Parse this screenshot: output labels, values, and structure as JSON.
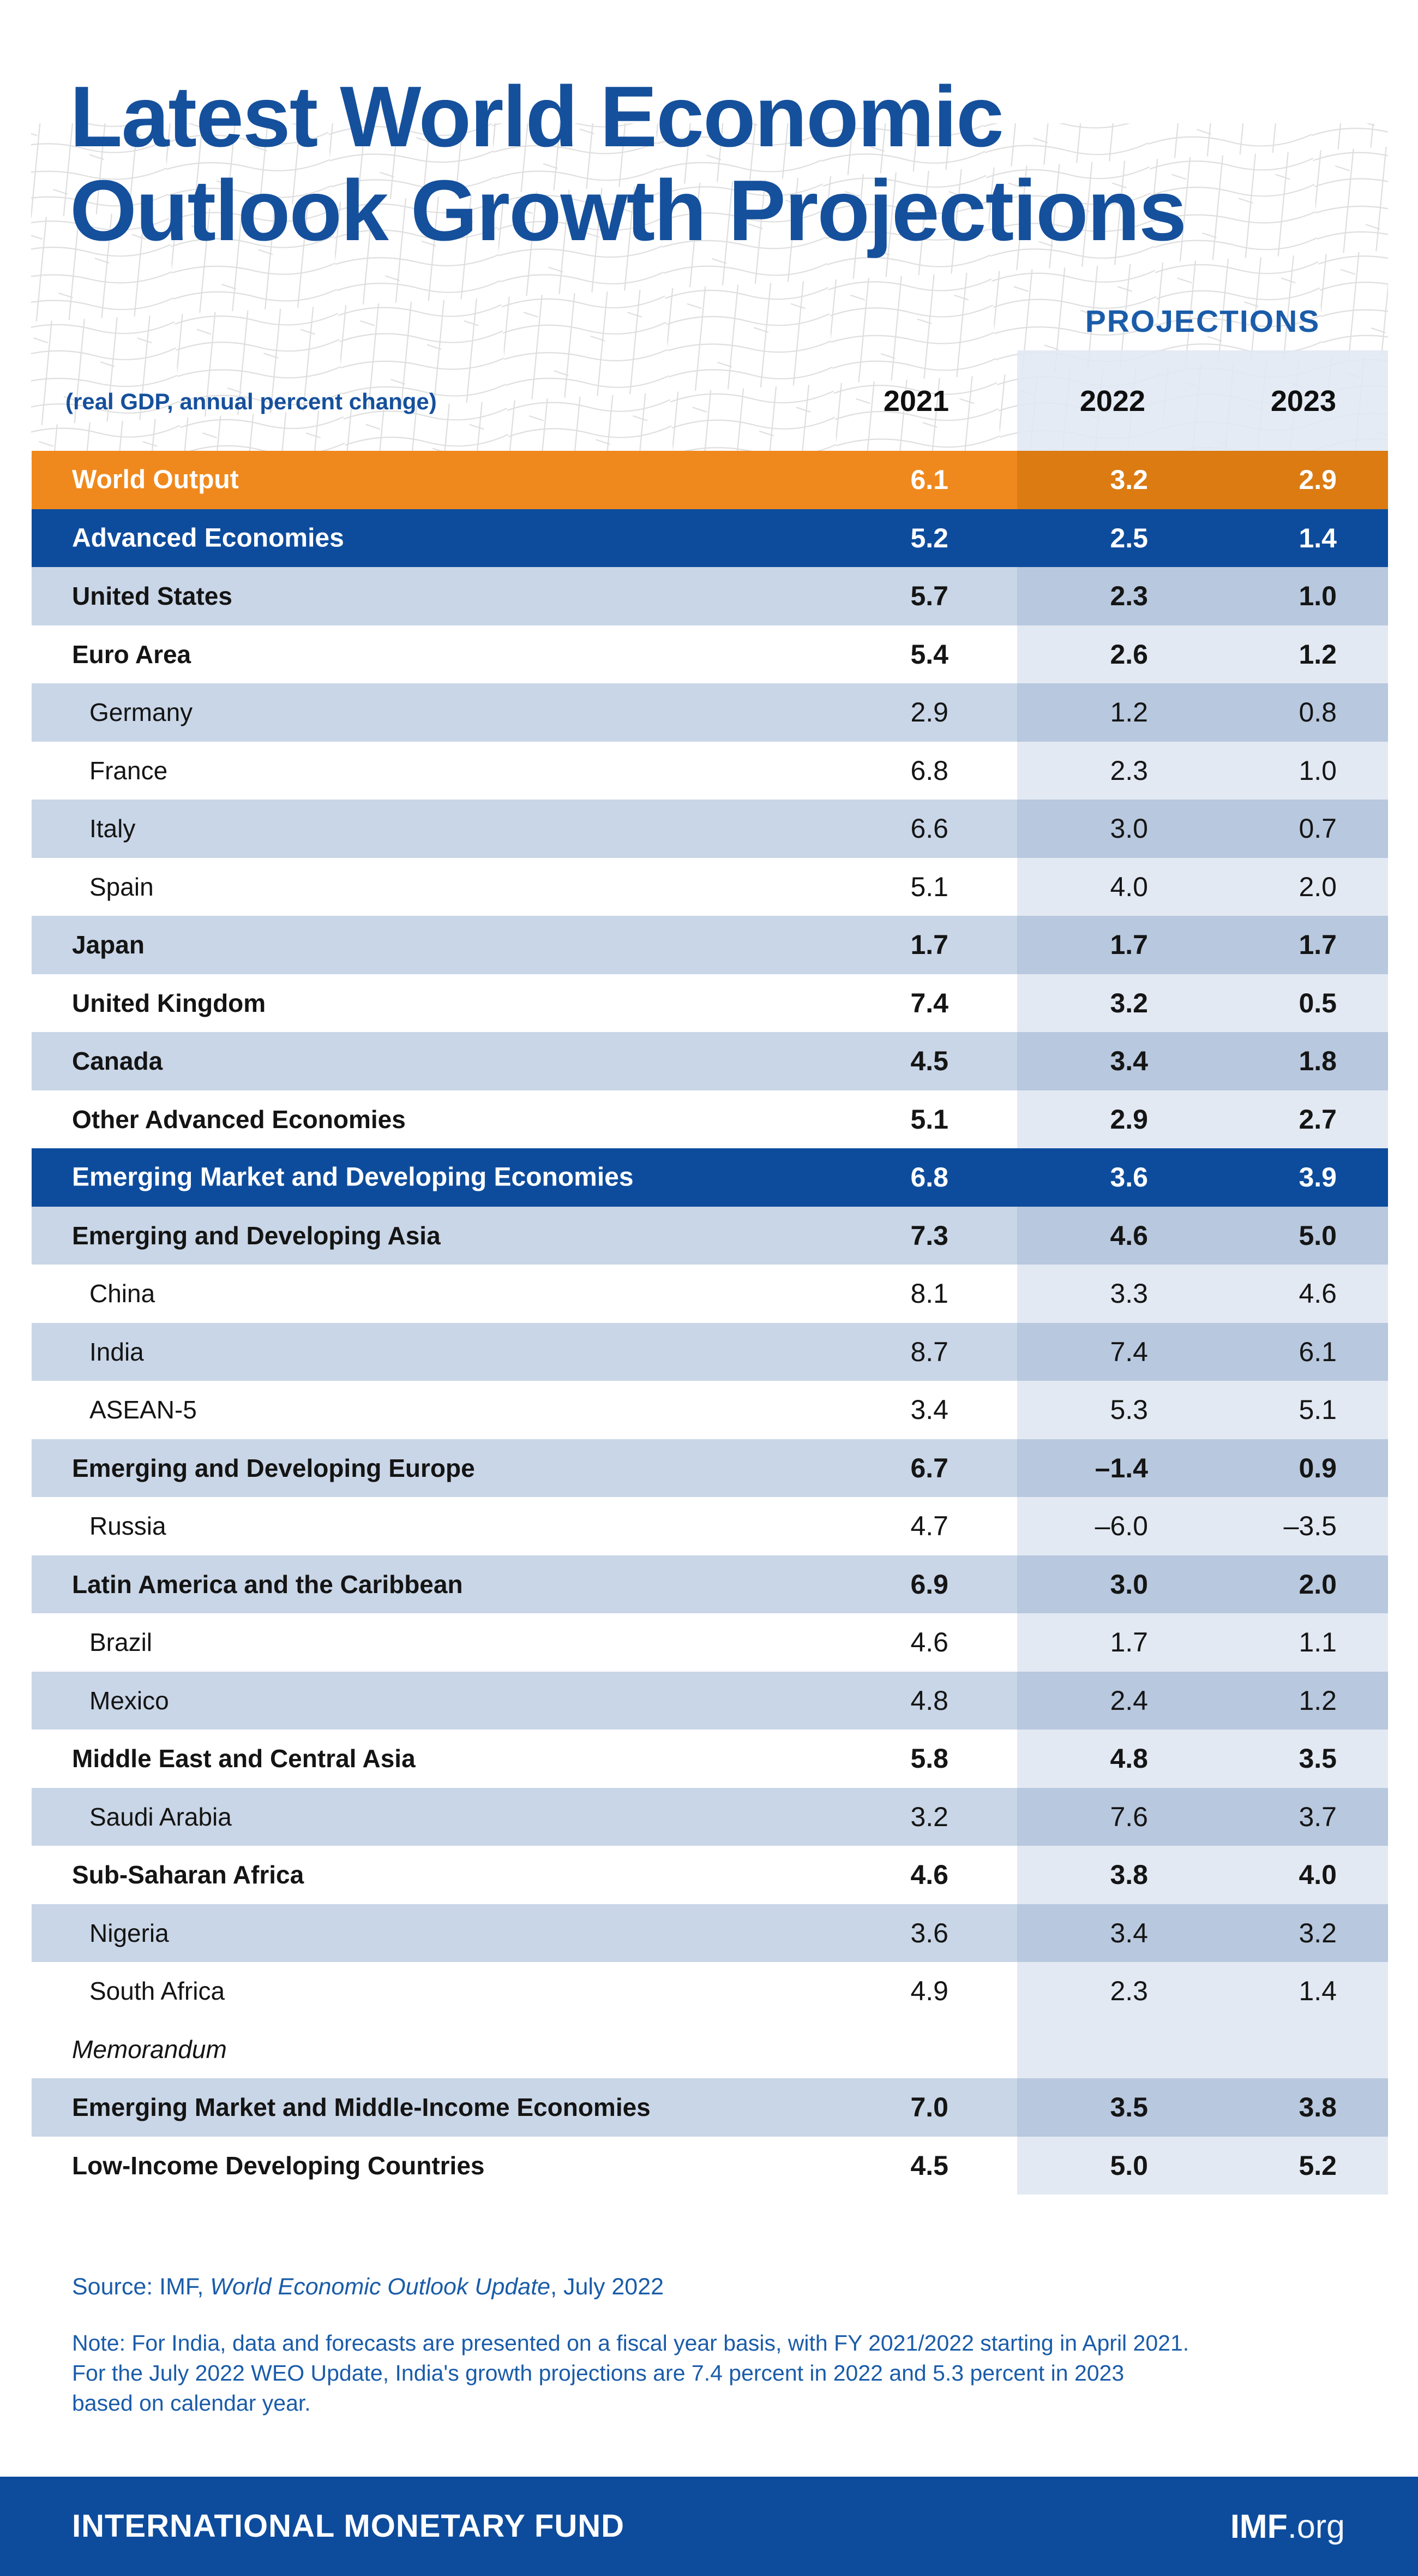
{
  "header": {
    "title_line1": "Latest World Economic",
    "title_line2": "Outlook Growth Projections",
    "projections_label": "PROJECTIONS",
    "unit_label": "(real GDP, annual percent change)",
    "years": [
      "2021",
      "2022",
      "2023"
    ]
  },
  "table": {
    "rows": [
      {
        "label": "World Output",
        "shade": "orange",
        "indent": false,
        "values": [
          "6.1",
          "3.2",
          "2.9"
        ]
      },
      {
        "label": "Advanced Economies",
        "shade": "blue",
        "indent": false,
        "values": [
          "5.2",
          "2.5",
          "1.4"
        ]
      },
      {
        "label": "United States",
        "shade": "light",
        "indent": false,
        "values": [
          "5.7",
          "2.3",
          "1.0"
        ]
      },
      {
        "label": "Euro Area",
        "shade": "white",
        "indent": false,
        "values": [
          "5.4",
          "2.6",
          "1.2"
        ]
      },
      {
        "label": "Germany",
        "shade": "light",
        "indent": true,
        "values": [
          "2.9",
          "1.2",
          "0.8"
        ]
      },
      {
        "label": "France",
        "shade": "white",
        "indent": true,
        "values": [
          "6.8",
          "2.3",
          "1.0"
        ]
      },
      {
        "label": "Italy",
        "shade": "light",
        "indent": true,
        "values": [
          "6.6",
          "3.0",
          "0.7"
        ]
      },
      {
        "label": "Spain",
        "shade": "white",
        "indent": true,
        "values": [
          "5.1",
          "4.0",
          "2.0"
        ]
      },
      {
        "label": "Japan",
        "shade": "light",
        "indent": false,
        "values": [
          "1.7",
          "1.7",
          "1.7"
        ]
      },
      {
        "label": "United Kingdom",
        "shade": "white",
        "indent": false,
        "values": [
          "7.4",
          "3.2",
          "0.5"
        ]
      },
      {
        "label": "Canada",
        "shade": "light",
        "indent": false,
        "values": [
          "4.5",
          "3.4",
          "1.8"
        ]
      },
      {
        "label": "Other Advanced Economies",
        "shade": "white",
        "indent": false,
        "values": [
          "5.1",
          "2.9",
          "2.7"
        ]
      },
      {
        "label": "Emerging Market and Developing Economies",
        "shade": "blue",
        "indent": false,
        "values": [
          "6.8",
          "3.6",
          "3.9"
        ]
      },
      {
        "label": "Emerging and Developing Asia",
        "shade": "light",
        "indent": false,
        "values": [
          "7.3",
          "4.6",
          "5.0"
        ]
      },
      {
        "label": "China",
        "shade": "white",
        "indent": true,
        "values": [
          "8.1",
          "3.3",
          "4.6"
        ]
      },
      {
        "label": "India",
        "shade": "light",
        "indent": true,
        "values": [
          "8.7",
          "7.4",
          "6.1"
        ]
      },
      {
        "label": "ASEAN-5",
        "shade": "white",
        "indent": true,
        "values": [
          "3.4",
          "5.3",
          "5.1"
        ]
      },
      {
        "label": "Emerging and Developing Europe",
        "shade": "light",
        "indent": false,
        "values": [
          "6.7",
          "–1.4",
          "0.9"
        ]
      },
      {
        "label": "Russia",
        "shade": "white",
        "indent": true,
        "values": [
          "4.7",
          "–6.0",
          "–3.5"
        ]
      },
      {
        "label": "Latin America and the Caribbean",
        "shade": "light",
        "indent": false,
        "values": [
          "6.9",
          "3.0",
          "2.0"
        ]
      },
      {
        "label": "Brazil",
        "shade": "white",
        "indent": true,
        "values": [
          "4.6",
          "1.7",
          "1.1"
        ]
      },
      {
        "label": "Mexico",
        "shade": "light",
        "indent": true,
        "values": [
          "4.8",
          "2.4",
          "1.2"
        ]
      },
      {
        "label": "Middle East and Central Asia",
        "shade": "white",
        "indent": false,
        "values": [
          "5.8",
          "4.8",
          "3.5"
        ]
      },
      {
        "label": "Saudi Arabia",
        "shade": "light",
        "indent": true,
        "values": [
          "3.2",
          "7.6",
          "3.7"
        ]
      },
      {
        "label": "Sub-Saharan Africa",
        "shade": "white",
        "indent": false,
        "values": [
          "4.6",
          "3.8",
          "4.0"
        ]
      },
      {
        "label": "Nigeria",
        "shade": "light",
        "indent": true,
        "values": [
          "3.6",
          "3.4",
          "3.2"
        ]
      },
      {
        "label": "South Africa",
        "shade": "white",
        "indent": true,
        "values": [
          "4.9",
          "2.3",
          "1.4"
        ]
      },
      {
        "label": "Memorandum",
        "shade": "white",
        "indent": false,
        "memo": true,
        "values": null
      },
      {
        "label": "Emerging Market and Middle-Income Economies",
        "shade": "light",
        "indent": false,
        "values": [
          "7.0",
          "3.5",
          "3.8"
        ]
      },
      {
        "label": "Low-Income Developing Countries",
        "shade": "white",
        "indent": false,
        "values": [
          "4.5",
          "5.0",
          "5.2"
        ]
      }
    ]
  },
  "source": {
    "prefix": "Source: IMF, ",
    "italic": "World Economic Outlook Update",
    "suffix": ", July 2022"
  },
  "note": "Note: For India, data and forecasts are presented on a fiscal year basis, with FY 2021/2022 starting in April 2021.\nFor the July 2022 WEO Update, India's growth projections are 7.4 percent in 2022 and 5.3 percent in 2023\nbased on calendar year.",
  "footer": {
    "org": "INTERNATIONAL MONETARY FUND",
    "site_bold": "IMF",
    "site_rest": ".org"
  },
  "colors": {
    "imf_blue": "#0D4C9D",
    "title_blue": "#15509C",
    "accent_blue": "#1A5CA9",
    "orange": "#F0891D",
    "orange_projection": "#DB7B12",
    "row_light_blue": "#C9D6E7",
    "row_light_blue_projection": "#B8C8DE",
    "projection_overlay": "#E3E9F3"
  },
  "chart_data": {
    "type": "table",
    "title": "Latest World Economic Outlook Growth Projections",
    "unit": "real GDP, annual percent change",
    "columns": [
      "2021",
      "2022",
      "2023"
    ],
    "projection_columns": [
      "2022",
      "2023"
    ],
    "rows": [
      {
        "name": "World Output",
        "values": [
          6.1,
          3.2,
          2.9
        ]
      },
      {
        "name": "Advanced Economies",
        "values": [
          5.2,
          2.5,
          1.4
        ]
      },
      {
        "name": "United States",
        "values": [
          5.7,
          2.3,
          1.0
        ]
      },
      {
        "name": "Euro Area",
        "values": [
          5.4,
          2.6,
          1.2
        ]
      },
      {
        "name": "Germany",
        "values": [
          2.9,
          1.2,
          0.8
        ]
      },
      {
        "name": "France",
        "values": [
          6.8,
          2.3,
          1.0
        ]
      },
      {
        "name": "Italy",
        "values": [
          6.6,
          3.0,
          0.7
        ]
      },
      {
        "name": "Spain",
        "values": [
          5.1,
          4.0,
          2.0
        ]
      },
      {
        "name": "Japan",
        "values": [
          1.7,
          1.7,
          1.7
        ]
      },
      {
        "name": "United Kingdom",
        "values": [
          7.4,
          3.2,
          0.5
        ]
      },
      {
        "name": "Canada",
        "values": [
          4.5,
          3.4,
          1.8
        ]
      },
      {
        "name": "Other Advanced Economies",
        "values": [
          5.1,
          2.9,
          2.7
        ]
      },
      {
        "name": "Emerging Market and Developing Economies",
        "values": [
          6.8,
          3.6,
          3.9
        ]
      },
      {
        "name": "Emerging and Developing Asia",
        "values": [
          7.3,
          4.6,
          5.0
        ]
      },
      {
        "name": "China",
        "values": [
          8.1,
          3.3,
          4.6
        ]
      },
      {
        "name": "India",
        "values": [
          8.7,
          7.4,
          6.1
        ]
      },
      {
        "name": "ASEAN-5",
        "values": [
          3.4,
          5.3,
          5.1
        ]
      },
      {
        "name": "Emerging and Developing Europe",
        "values": [
          6.7,
          -1.4,
          0.9
        ]
      },
      {
        "name": "Russia",
        "values": [
          4.7,
          -6.0,
          -3.5
        ]
      },
      {
        "name": "Latin America and the Caribbean",
        "values": [
          6.9,
          3.0,
          2.0
        ]
      },
      {
        "name": "Brazil",
        "values": [
          4.6,
          1.7,
          1.1
        ]
      },
      {
        "name": "Mexico",
        "values": [
          4.8,
          2.4,
          1.2
        ]
      },
      {
        "name": "Middle East and Central Asia",
        "values": [
          5.8,
          4.8,
          3.5
        ]
      },
      {
        "name": "Saudi Arabia",
        "values": [
          3.2,
          7.6,
          3.7
        ]
      },
      {
        "name": "Sub-Saharan Africa",
        "values": [
          4.6,
          3.8,
          4.0
        ]
      },
      {
        "name": "Nigeria",
        "values": [
          3.6,
          3.4,
          3.2
        ]
      },
      {
        "name": "South Africa",
        "values": [
          4.9,
          2.3,
          1.4
        ]
      },
      {
        "name": "Emerging Market and Middle-Income Economies",
        "values": [
          7.0,
          3.5,
          3.8
        ]
      },
      {
        "name": "Low-Income Developing Countries",
        "values": [
          4.5,
          5.0,
          5.2
        ]
      }
    ]
  }
}
